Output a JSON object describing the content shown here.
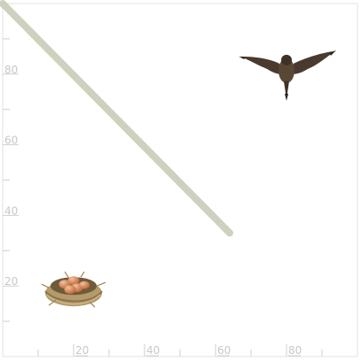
{
  "chart_data": {
    "type": "line",
    "title": "",
    "xlabel": "",
    "ylabel": "",
    "xlim": [
      0,
      100
    ],
    "ylim": [
      0,
      100
    ],
    "grid": false,
    "x_ticks": [
      20,
      40,
      60,
      80
    ],
    "y_ticks": [
      20,
      40,
      60,
      80
    ],
    "series": [
      {
        "color": "#cdd1be",
        "points": [
          [
            0,
            100
          ],
          [
            64,
            35
          ]
        ]
      }
    ],
    "pictograms": [
      {
        "icon": "bird-icon",
        "x": 80,
        "y": 82
      },
      {
        "icon": "nest-with-eggs-icon",
        "x": 20,
        "y": 20
      }
    ]
  }
}
